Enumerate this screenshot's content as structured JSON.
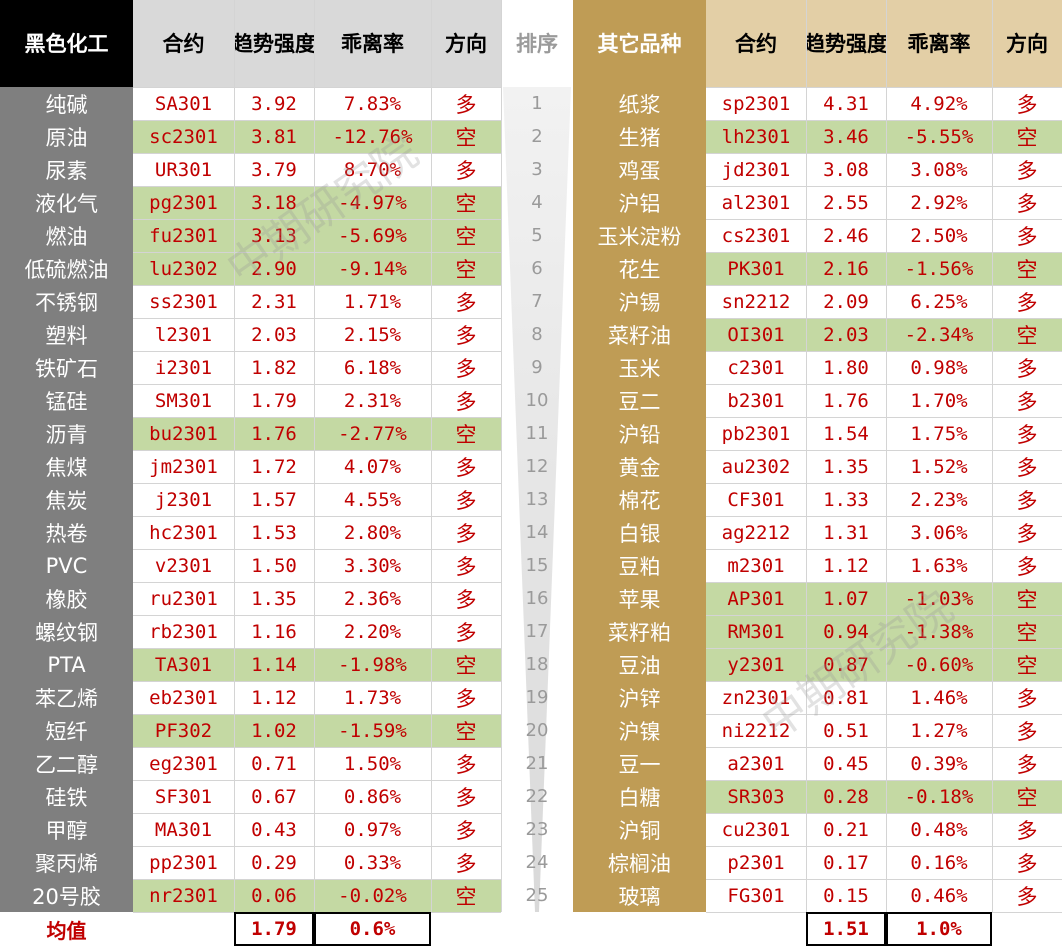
{
  "colors": {
    "left_name_bg": "#7f7f7f",
    "right_name_bg": "#bf9c55",
    "right_header_bg": "#e3cfa6",
    "left_header_bg": "#d9d9d9",
    "short_row_bg": "#c4d9a3",
    "value_red": "#c00000"
  },
  "headers": {
    "left_category": "黑色化工",
    "contract": "合约",
    "trend_1": "趋势",
    "trend_2": "强度",
    "deviation": "乖离率",
    "direction": "方向",
    "rank": "排序",
    "right_category_1": "其它",
    "right_category_2": "品种"
  },
  "left_rows": [
    {
      "name": "纯碱",
      "contract": "SA301",
      "trend": "3.92",
      "dev": "7.83%",
      "dir": "多"
    },
    {
      "name": "原油",
      "contract": "sc2301",
      "trend": "3.81",
      "dev": "-12.76%",
      "dir": "空"
    },
    {
      "name": "尿素",
      "contract": "UR301",
      "trend": "3.79",
      "dev": "8.70%",
      "dir": "多"
    },
    {
      "name": "液化气",
      "contract": "pg2301",
      "trend": "3.18",
      "dev": "-4.97%",
      "dir": "空"
    },
    {
      "name": "燃油",
      "contract": "fu2301",
      "trend": "3.13",
      "dev": "-5.69%",
      "dir": "空"
    },
    {
      "name": "低硫燃油",
      "contract": "lu2302",
      "trend": "2.90",
      "dev": "-9.14%",
      "dir": "空"
    },
    {
      "name": "不锈钢",
      "contract": "ss2301",
      "trend": "2.31",
      "dev": "1.71%",
      "dir": "多"
    },
    {
      "name": "塑料",
      "contract": "l2301",
      "trend": "2.03",
      "dev": "2.15%",
      "dir": "多"
    },
    {
      "name": "铁矿石",
      "contract": "i2301",
      "trend": "1.82",
      "dev": "6.18%",
      "dir": "多"
    },
    {
      "name": "锰硅",
      "contract": "SM301",
      "trend": "1.79",
      "dev": "2.31%",
      "dir": "多"
    },
    {
      "name": "沥青",
      "contract": "bu2301",
      "trend": "1.76",
      "dev": "-2.77%",
      "dir": "空"
    },
    {
      "name": "焦煤",
      "contract": "jm2301",
      "trend": "1.72",
      "dev": "4.07%",
      "dir": "多"
    },
    {
      "name": "焦炭",
      "contract": "j2301",
      "trend": "1.57",
      "dev": "4.55%",
      "dir": "多"
    },
    {
      "name": "热卷",
      "contract": "hc2301",
      "trend": "1.53",
      "dev": "2.80%",
      "dir": "多"
    },
    {
      "name": "PVC",
      "contract": "v2301",
      "trend": "1.50",
      "dev": "3.30%",
      "dir": "多"
    },
    {
      "name": "橡胶",
      "contract": "ru2301",
      "trend": "1.35",
      "dev": "2.36%",
      "dir": "多"
    },
    {
      "name": "螺纹钢",
      "contract": "rb2301",
      "trend": "1.16",
      "dev": "2.20%",
      "dir": "多"
    },
    {
      "name": "PTA",
      "contract": "TA301",
      "trend": "1.14",
      "dev": "-1.98%",
      "dir": "空"
    },
    {
      "name": "苯乙烯",
      "contract": "eb2301",
      "trend": "1.12",
      "dev": "1.73%",
      "dir": "多"
    },
    {
      "name": "短纤",
      "contract": "PF302",
      "trend": "1.02",
      "dev": "-1.59%",
      "dir": "空"
    },
    {
      "name": "乙二醇",
      "contract": "eg2301",
      "trend": "0.71",
      "dev": "1.50%",
      "dir": "多"
    },
    {
      "name": "硅铁",
      "contract": "SF301",
      "trend": "0.67",
      "dev": "0.86%",
      "dir": "多"
    },
    {
      "name": "甲醇",
      "contract": "MA301",
      "trend": "0.43",
      "dev": "0.97%",
      "dir": "多"
    },
    {
      "name": "聚丙烯",
      "contract": "pp2301",
      "trend": "0.29",
      "dev": "0.33%",
      "dir": "多"
    },
    {
      "name": "20号胶",
      "contract": "nr2301",
      "trend": "0.06",
      "dev": "-0.02%",
      "dir": "空"
    }
  ],
  "right_rows": [
    {
      "rank": "1",
      "name": "纸浆",
      "contract": "sp2301",
      "trend": "4.31",
      "dev": "4.92%",
      "dir": "多"
    },
    {
      "rank": "2",
      "name": "生猪",
      "contract": "lh2301",
      "trend": "3.46",
      "dev": "-5.55%",
      "dir": "空"
    },
    {
      "rank": "3",
      "name": "鸡蛋",
      "contract": "jd2301",
      "trend": "3.08",
      "dev": "3.08%",
      "dir": "多"
    },
    {
      "rank": "4",
      "name": "沪铝",
      "contract": "al2301",
      "trend": "2.55",
      "dev": "2.92%",
      "dir": "多"
    },
    {
      "rank": "5",
      "name": "玉米淀粉",
      "contract": "cs2301",
      "trend": "2.46",
      "dev": "2.50%",
      "dir": "多"
    },
    {
      "rank": "6",
      "name": "花生",
      "contract": "PK301",
      "trend": "2.16",
      "dev": "-1.56%",
      "dir": "空"
    },
    {
      "rank": "7",
      "name": "沪锡",
      "contract": "sn2212",
      "trend": "2.09",
      "dev": "6.25%",
      "dir": "多"
    },
    {
      "rank": "8",
      "name": "菜籽油",
      "contract": "OI301",
      "trend": "2.03",
      "dev": "-2.34%",
      "dir": "空"
    },
    {
      "rank": "9",
      "name": "玉米",
      "contract": "c2301",
      "trend": "1.80",
      "dev": "0.98%",
      "dir": "多"
    },
    {
      "rank": "10",
      "name": "豆二",
      "contract": "b2301",
      "trend": "1.76",
      "dev": "1.70%",
      "dir": "多"
    },
    {
      "rank": "11",
      "name": "沪铅",
      "contract": "pb2301",
      "trend": "1.54",
      "dev": "1.75%",
      "dir": "多"
    },
    {
      "rank": "12",
      "name": "黄金",
      "contract": "au2302",
      "trend": "1.35",
      "dev": "1.52%",
      "dir": "多"
    },
    {
      "rank": "13",
      "name": "棉花",
      "contract": "CF301",
      "trend": "1.33",
      "dev": "2.23%",
      "dir": "多"
    },
    {
      "rank": "14",
      "name": "白银",
      "contract": "ag2212",
      "trend": "1.31",
      "dev": "3.06%",
      "dir": "多"
    },
    {
      "rank": "15",
      "name": "豆粕",
      "contract": "m2301",
      "trend": "1.12",
      "dev": "1.63%",
      "dir": "多"
    },
    {
      "rank": "16",
      "name": "苹果",
      "contract": "AP301",
      "trend": "1.07",
      "dev": "-1.03%",
      "dir": "空"
    },
    {
      "rank": "17",
      "name": "菜籽粕",
      "contract": "RM301",
      "trend": "0.94",
      "dev": "-1.38%",
      "dir": "空"
    },
    {
      "rank": "18",
      "name": "豆油",
      "contract": "y2301",
      "trend": "0.87",
      "dev": "-0.60%",
      "dir": "空"
    },
    {
      "rank": "19",
      "name": "沪锌",
      "contract": "zn2301",
      "trend": "0.81",
      "dev": "1.46%",
      "dir": "多"
    },
    {
      "rank": "20",
      "name": "沪镍",
      "contract": "ni2212",
      "trend": "0.51",
      "dev": "1.27%",
      "dir": "多"
    },
    {
      "rank": "21",
      "name": "豆一",
      "contract": "a2301",
      "trend": "0.45",
      "dev": "0.39%",
      "dir": "多"
    },
    {
      "rank": "22",
      "name": "白糖",
      "contract": "SR303",
      "trend": "0.28",
      "dev": "-0.18%",
      "dir": "空"
    },
    {
      "rank": "23",
      "name": "沪铜",
      "contract": "cu2301",
      "trend": "0.21",
      "dev": "0.48%",
      "dir": "多"
    },
    {
      "rank": "24",
      "name": "棕榈油",
      "contract": "p2301",
      "trend": "0.17",
      "dev": "0.16%",
      "dir": "多"
    },
    {
      "rank": "25",
      "name": "玻璃",
      "contract": "FG301",
      "trend": "0.15",
      "dev": "0.46%",
      "dir": "多"
    }
  ],
  "average": {
    "label": "均值",
    "left_trend": "1.79",
    "left_dev": "0.6%",
    "right_trend": "1.51",
    "right_dev": "1.0%"
  },
  "watermark": "中期研究院"
}
